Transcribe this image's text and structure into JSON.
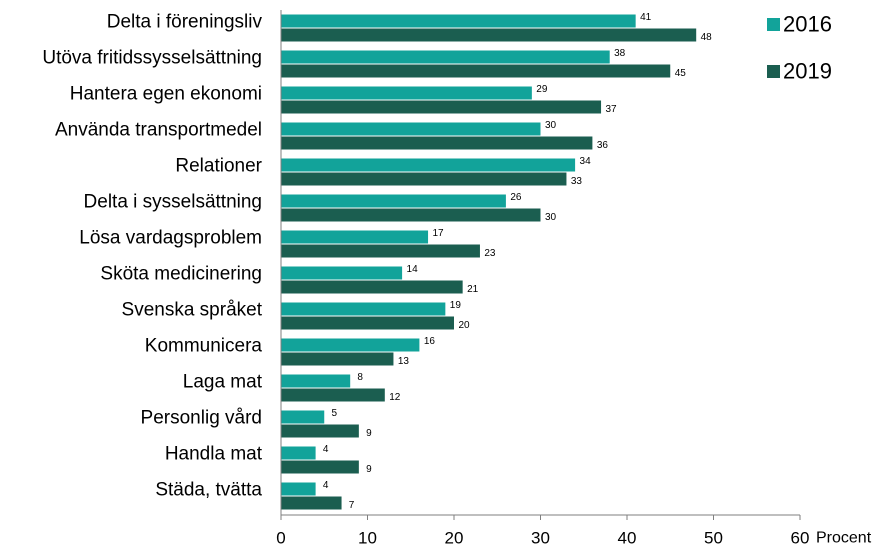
{
  "chart_data": {
    "type": "bar",
    "orientation": "horizontal",
    "categories": [
      "Delta i föreningsliv",
      "Utöva fritidssysselsättning",
      "Hantera egen ekonomi",
      "Använda transportmedel",
      "Relationer",
      "Delta i sysselsättning",
      "Lösa vardagsproblem",
      "Sköta medicinering",
      "Svenska språket",
      "Kommunicera",
      "Laga mat",
      "Personlig vård",
      "Handla mat",
      "Städa, tvätta"
    ],
    "series": [
      {
        "name": "2016",
        "color": "#12a39a",
        "values": [
          41,
          38,
          29,
          30,
          34,
          26,
          17,
          14,
          19,
          16,
          8,
          5,
          4,
          4
        ]
      },
      {
        "name": "2019",
        "color": "#1b5e50",
        "values": [
          48,
          45,
          37,
          36,
          33,
          30,
          23,
          21,
          20,
          13,
          12,
          9,
          9,
          7
        ]
      }
    ],
    "xlim": [
      0,
      60
    ],
    "xticks": [
      0,
      10,
      20,
      30,
      40,
      50,
      60
    ],
    "xlabel": "Procent",
    "legend_position": "top-right",
    "grid": false
  }
}
